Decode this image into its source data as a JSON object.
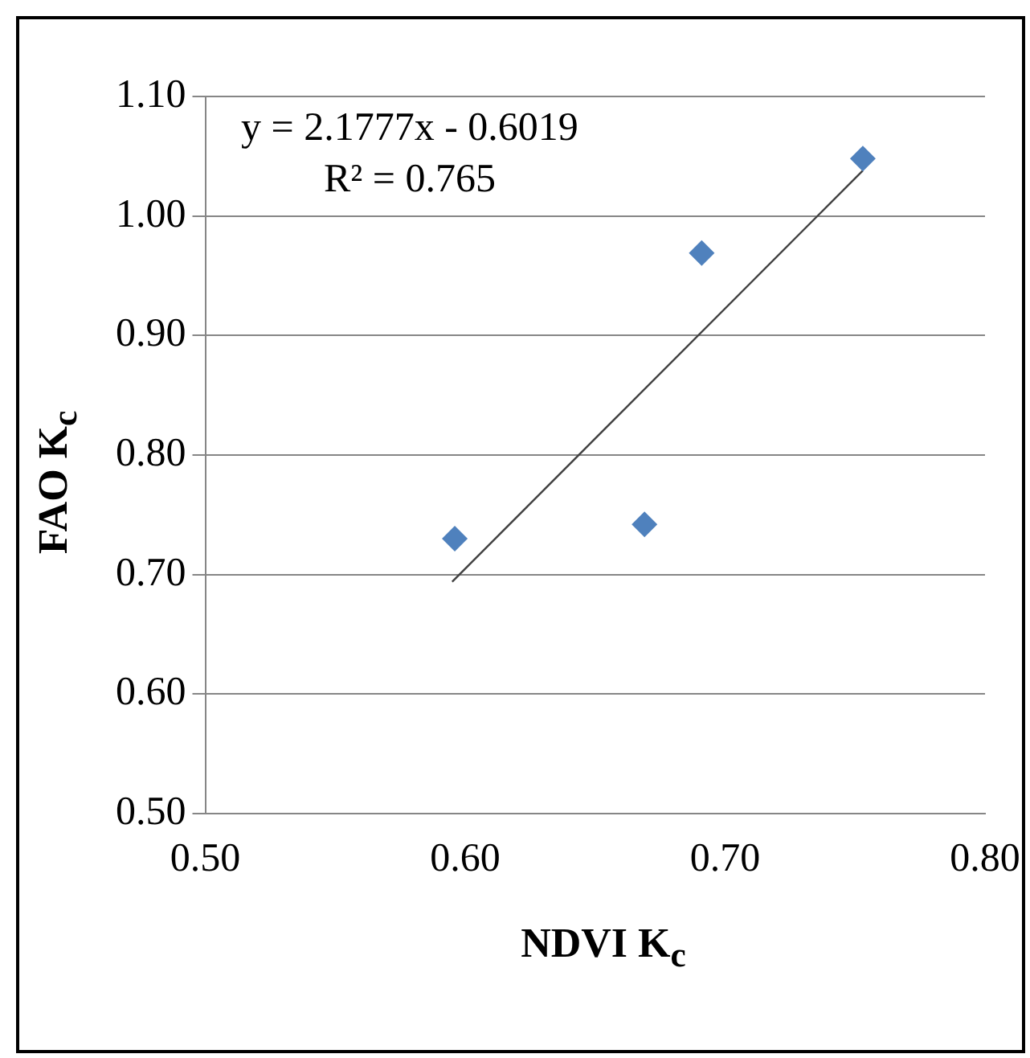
{
  "chart_data": {
    "type": "scatter",
    "xlabel": "NDVI K$_{c}$",
    "ylabel": "FAO K$_{c}$",
    "annotations": [
      "y = 2.1777x - 0.6019",
      "R² = 0.765"
    ],
    "series": [
      {
        "type": "scatter",
        "color": "#4f81bd",
        "x": [
          0.596,
          0.669,
          0.691,
          0.753
        ],
        "values": [
          0.73,
          0.742,
          0.969,
          1.048
        ],
        "marker": "diamond"
      },
      {
        "type": "line",
        "color": "#404040",
        "x": [
          0.595,
          0.753
        ],
        "values": [
          0.694,
          1.038
        ],
        "marker": "none"
      }
    ],
    "xlim": [
      0.5,
      0.8
    ],
    "xticks": [
      {
        "value": 0.5,
        "label": "0.50"
      },
      {
        "value": 0.6,
        "label": "0.60"
      },
      {
        "value": 0.7,
        "label": "0.70"
      },
      {
        "value": 0.8,
        "label": "0.80"
      }
    ],
    "ylim": [
      0.5,
      1.1
    ],
    "yticks": [
      {
        "value": 0.5,
        "label": "0.50"
      },
      {
        "value": 0.6,
        "label": "0.60"
      },
      {
        "value": 0.7,
        "label": "0.70"
      },
      {
        "value": 0.8,
        "label": "0.80"
      },
      {
        "value": 0.9,
        "label": "0.90"
      },
      {
        "value": 1.0,
        "label": "1.00"
      },
      {
        "value": 1.1,
        "label": "1.10"
      }
    ],
    "grid": "y",
    "legend": false
  }
}
